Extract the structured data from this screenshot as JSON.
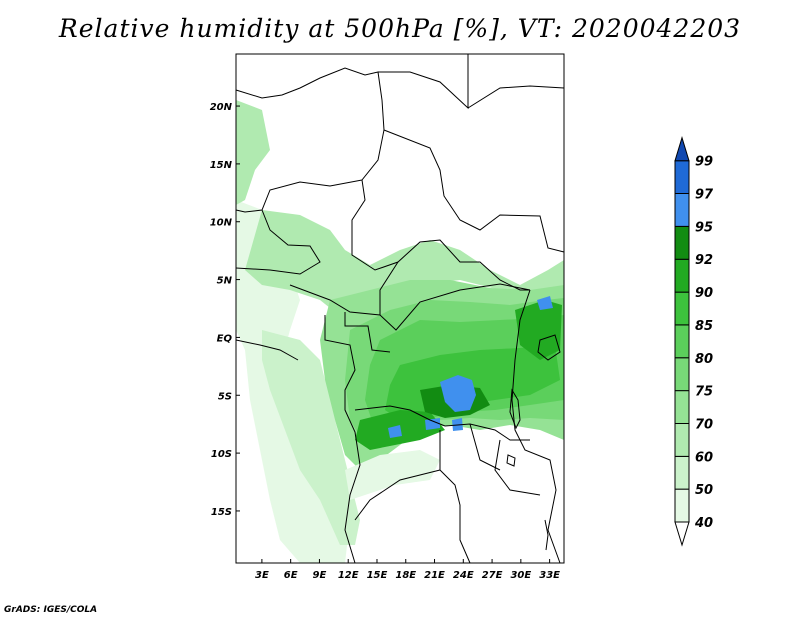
{
  "title": "Relative humidity at 500hPa [%], VT: 2020042203",
  "credit": "GrADS: IGES/COLA",
  "lat_labels": [
    "20N",
    "15N",
    "10N",
    "5N",
    "EQ",
    "5S",
    "10S",
    "15S"
  ],
  "lat_values": [
    20,
    15,
    10,
    5,
    0,
    -5,
    -10,
    -15
  ],
  "lon_labels": [
    "3E",
    "6E",
    "9E",
    "12E",
    "15E",
    "18E",
    "21E",
    "24E",
    "27E",
    "30E",
    "33E"
  ],
  "lon_values": [
    3,
    6,
    9,
    12,
    15,
    18,
    21,
    24,
    27,
    30,
    33
  ],
  "domain": {
    "lon_min": 0.3,
    "lon_max": 34.5,
    "lat_min": -19.5,
    "lat_max": 24.5
  },
  "colorbar": {
    "levels": [
      "40",
      "50",
      "60",
      "70",
      "75",
      "80",
      "85",
      "90",
      "92",
      "95",
      "97",
      "99"
    ],
    "colors": [
      "#ffffff",
      "#e5f9e5",
      "#cbf2cb",
      "#b0eab0",
      "#95e295",
      "#78d978",
      "#5bcf5b",
      "#3dc23d",
      "#22aa22",
      "#128c12",
      "#4090ee",
      "#1f6ad6",
      "#1048b0"
    ]
  }
}
